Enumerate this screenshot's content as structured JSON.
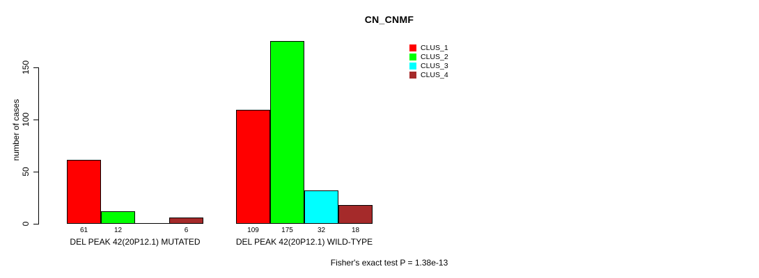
{
  "chart_data": {
    "type": "bar",
    "title": "CN_CNMF",
    "ylabel": "number of cases",
    "xlabel": "",
    "yticks": [
      0,
      50,
      100,
      150
    ],
    "ylim": [
      0,
      183
    ],
    "grid": false,
    "legend_position": "top-right",
    "categories": [
      "DEL PEAK 42(20P12.1) MUTATED",
      "DEL PEAK 42(20P12.1) WILD-TYPE"
    ],
    "series": [
      {
        "name": "CLUS_1",
        "color": "#FF0000",
        "values": [
          61,
          109
        ]
      },
      {
        "name": "CLUS_2",
        "color": "#00FF00",
        "values": [
          12,
          175
        ]
      },
      {
        "name": "CLUS_3",
        "color": "#00FFFF",
        "values": [
          0,
          32
        ]
      },
      {
        "name": "CLUS_4",
        "color": "#A52A2A",
        "values": [
          6,
          18
        ]
      }
    ],
    "bar_value_labels": [
      [
        "61",
        "12",
        null,
        "6"
      ],
      [
        "109",
        "175",
        "32",
        "18"
      ]
    ],
    "annotation": "Fisher's exact test P = 1.38e-13"
  },
  "colors": {
    "axis": "#000000",
    "background": "#FFFFFF"
  }
}
